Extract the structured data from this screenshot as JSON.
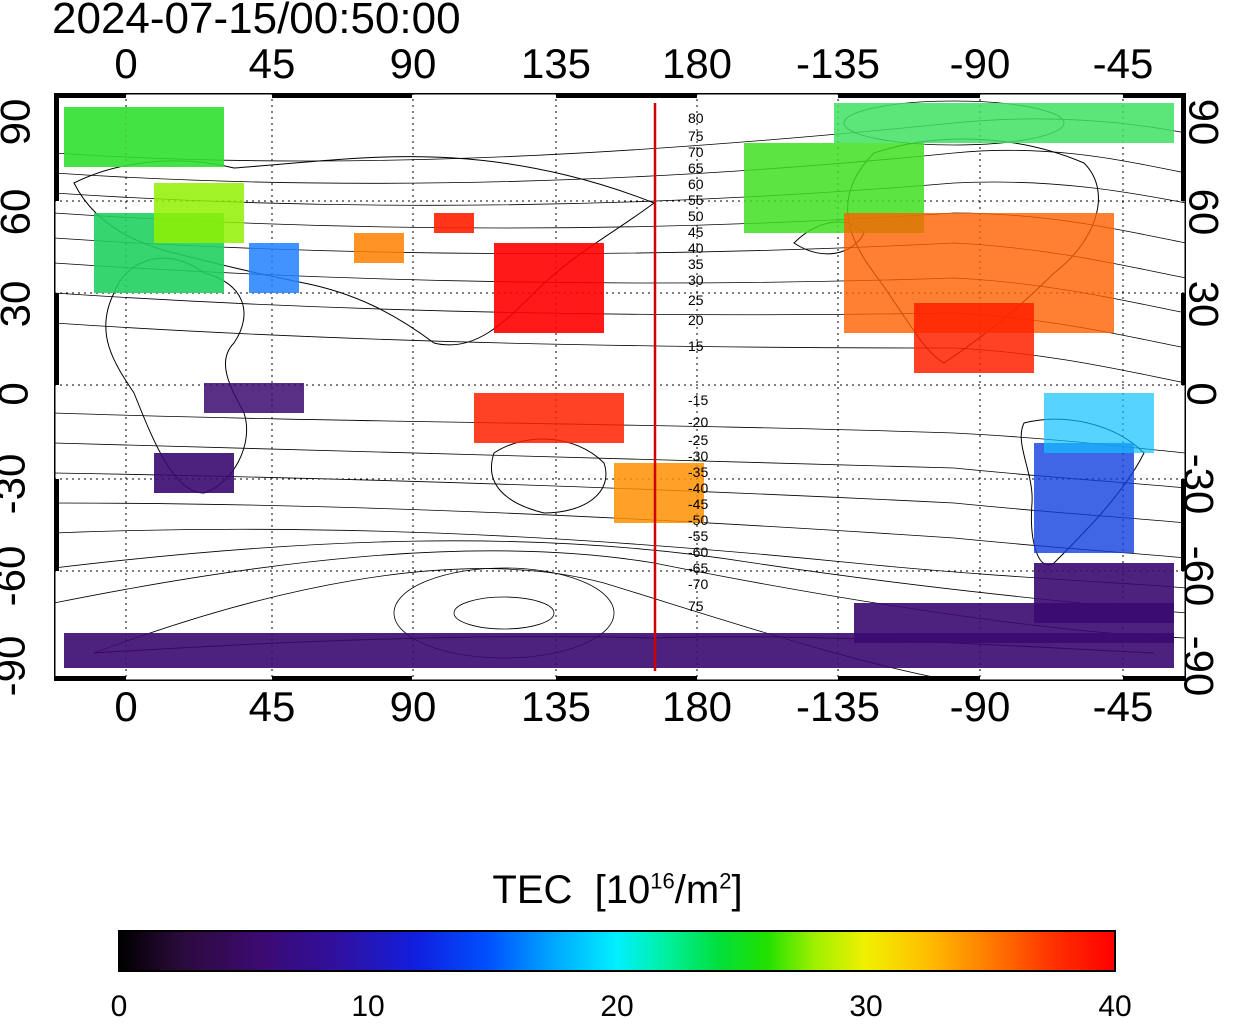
{
  "timestamp": "2024-07-15/00:50:00",
  "lon_labels": [
    "0",
    "45",
    "90",
    "135",
    "180",
    "-135",
    "-90",
    "-45"
  ],
  "lat_labels": [
    "90",
    "60",
    "30",
    "0",
    "-30",
    "-60",
    "-90"
  ],
  "contour_labels_north": [
    "80",
    "75",
    "70",
    "65",
    "60",
    "55",
    "50",
    "45",
    "40",
    "35",
    "30",
    "25",
    "20",
    "15"
  ],
  "contour_labels_south": [
    "-15",
    "-20",
    "-25",
    "-30",
    "-35",
    "-40",
    "-45",
    "-50",
    "-55",
    "-60",
    "-65",
    "-70",
    "75"
  ],
  "colorbar": {
    "title": "TEC",
    "unit_base": "[10",
    "unit_exp": "16",
    "unit_mid": "/m",
    "unit_exp2": "2",
    "unit_end": "]",
    "ticks": [
      "0",
      "10",
      "20",
      "30",
      "40"
    ],
    "range": [
      0,
      40
    ]
  },
  "markers": {
    "meridian_longitude": 168,
    "meridian_color": "#d00000"
  },
  "colors": {
    "land_line": "#000000",
    "grid": "#000000",
    "low": "#3a0a70",
    "high": "#ff0000"
  }
}
